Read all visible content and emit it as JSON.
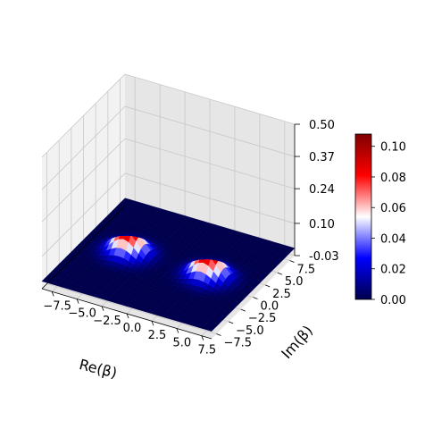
{
  "chart_data": {
    "type": "surface3d",
    "title": "",
    "xlabel": "Re(β)",
    "ylabel": "Im(β)",
    "zlabel": "",
    "xlim": [
      -8.5,
      8.5
    ],
    "ylim": [
      -8.5,
      8.5
    ],
    "zlim": [
      -0.03,
      0.5
    ],
    "xticks": [
      "−7.5",
      "−5.0",
      "−2.5",
      "0.0",
      "2.5",
      "5.0",
      "7.5"
    ],
    "yticks": [
      "−7.5",
      "−5.0",
      "−2.5",
      "0.0",
      "2.5",
      "5.0",
      "7.5"
    ],
    "zticks": [
      "-0.03",
      "0.10",
      "0.24",
      "0.37",
      "0.50"
    ],
    "colorbar": {
      "colormap": "seismic",
      "range": [
        0,
        0.108
      ],
      "ticks": [
        "0.00",
        "0.02",
        "0.04",
        "0.06",
        "0.08",
        "0.10"
      ]
    },
    "peaks": [
      {
        "re": -4.0,
        "im": 0.0,
        "height": 0.108,
        "width": 1.2
      },
      {
        "re": 4.0,
        "im": 0.0,
        "height": 0.108,
        "width": 1.2
      }
    ],
    "grid": true,
    "colors": {
      "low": "#00004c",
      "mid": "#ffffff",
      "high": "#7f0000",
      "pane": "#f2f2f2",
      "pane_dark": "#e6e6e6"
    }
  }
}
